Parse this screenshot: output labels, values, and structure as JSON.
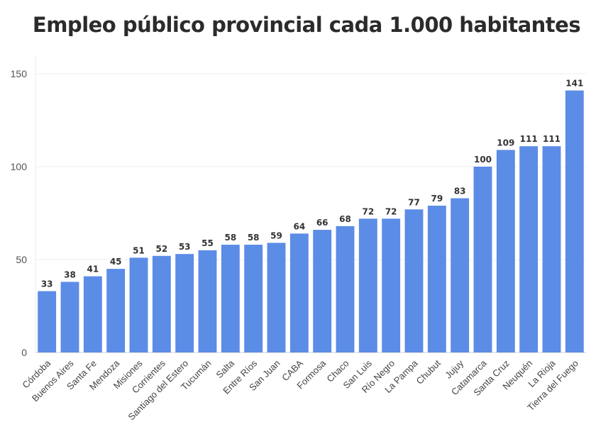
{
  "chart_data": {
    "type": "bar",
    "title": "Empleo público provincial cada 1.000 habitantes",
    "xlabel": "",
    "ylabel": "",
    "ylim": [
      0,
      150
    ],
    "yticks": [
      0,
      50,
      100,
      150
    ],
    "grid": true,
    "bar_color": "#5b8ce6",
    "categories": [
      "Córdoba",
      "Buenos Aires",
      "Santa Fe",
      "Mendoza",
      "Misiones",
      "Corrientes",
      "Santiago del Estero",
      "Tucumán",
      "Salta",
      "Entre Ríos",
      "San Juan",
      "CABA",
      "Formosa",
      "Chaco",
      "San Luis",
      "Río Negro",
      "La Pampa",
      "Chubut",
      "Jujuy",
      "Catamarca",
      "Santa Cruz",
      "Neuquén",
      "La Rioja",
      "Tierra del Fuego"
    ],
    "values": [
      33,
      38,
      41,
      45,
      51,
      52,
      53,
      55,
      58,
      58,
      59,
      64,
      66,
      68,
      72,
      72,
      77,
      79,
      83,
      100,
      109,
      111,
      111,
      141
    ]
  }
}
